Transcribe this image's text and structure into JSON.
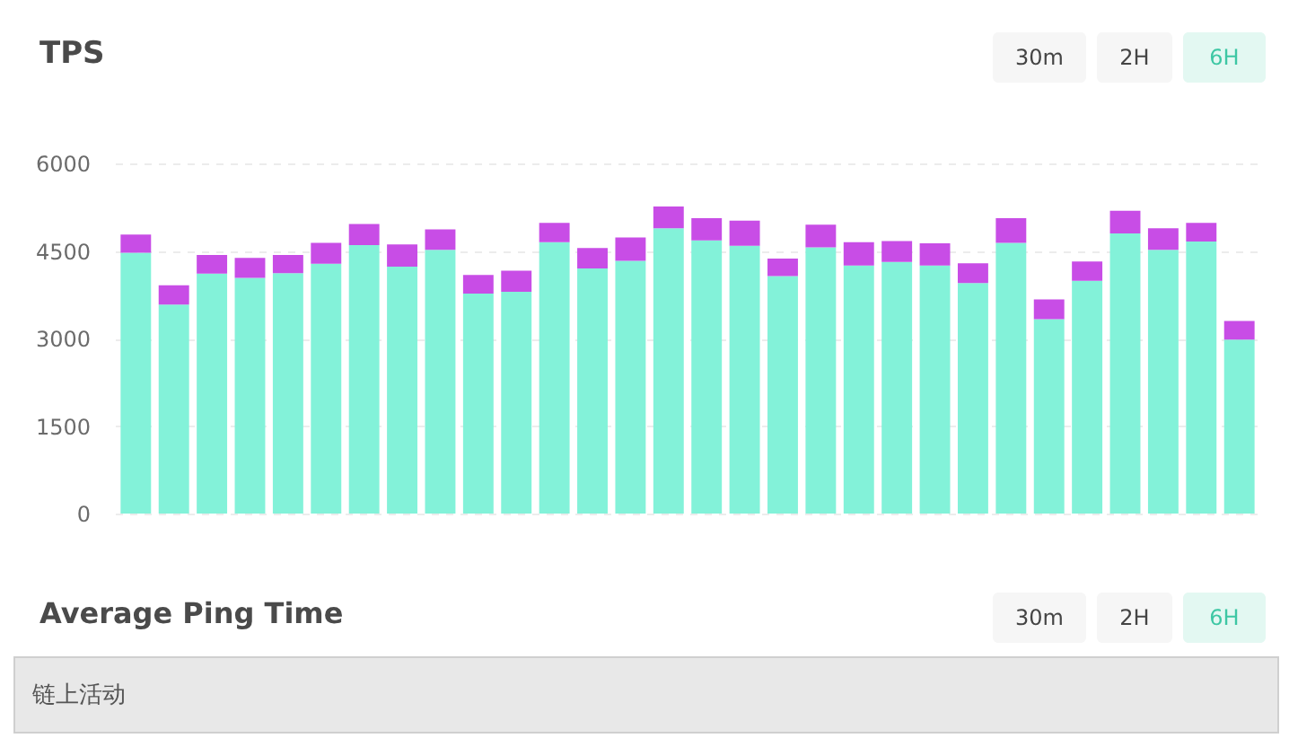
{
  "chart_data": {
    "type": "bar",
    "title": "TPS",
    "categories": [
      null,
      null,
      null,
      null,
      null,
      null,
      null,
      null,
      null,
      null,
      null,
      null,
      null,
      null,
      null,
      null,
      null,
      null,
      null,
      null,
      null,
      null,
      null,
      null,
      null,
      null,
      null,
      null,
      null,
      null
    ],
    "series": [
      {
        "color": "#83f2d9",
        "values": [
          4470,
          3580,
          4110,
          4040,
          4120,
          4280,
          4600,
          4230,
          4520,
          3770,
          3800,
          4650,
          4200,
          4330,
          4890,
          4680,
          4590,
          4070,
          4560,
          4250,
          4310,
          4250,
          3950,
          4640,
          3330,
          3990,
          4800,
          4520,
          4660,
          2980
        ]
      },
      {
        "color": "#c84de6",
        "values": [
          310,
          330,
          320,
          340,
          310,
          360,
          360,
          380,
          350,
          320,
          360,
          330,
          350,
          400,
          370,
          380,
          430,
          300,
          390,
          400,
          360,
          380,
          340,
          420,
          340,
          330,
          390,
          370,
          320,
          320
        ]
      }
    ],
    "stacked": true,
    "ylim": [
      0,
      6000
    ],
    "yticks": [
      0,
      1500,
      3000,
      4500,
      6000
    ],
    "grid": "y",
    "tick_labels": "y",
    "annotations": [
      "30m",
      "2H",
      "6H",
      "Average Ping Time",
      "30m",
      "2H",
      "6H",
      "链上活动"
    ]
  }
}
